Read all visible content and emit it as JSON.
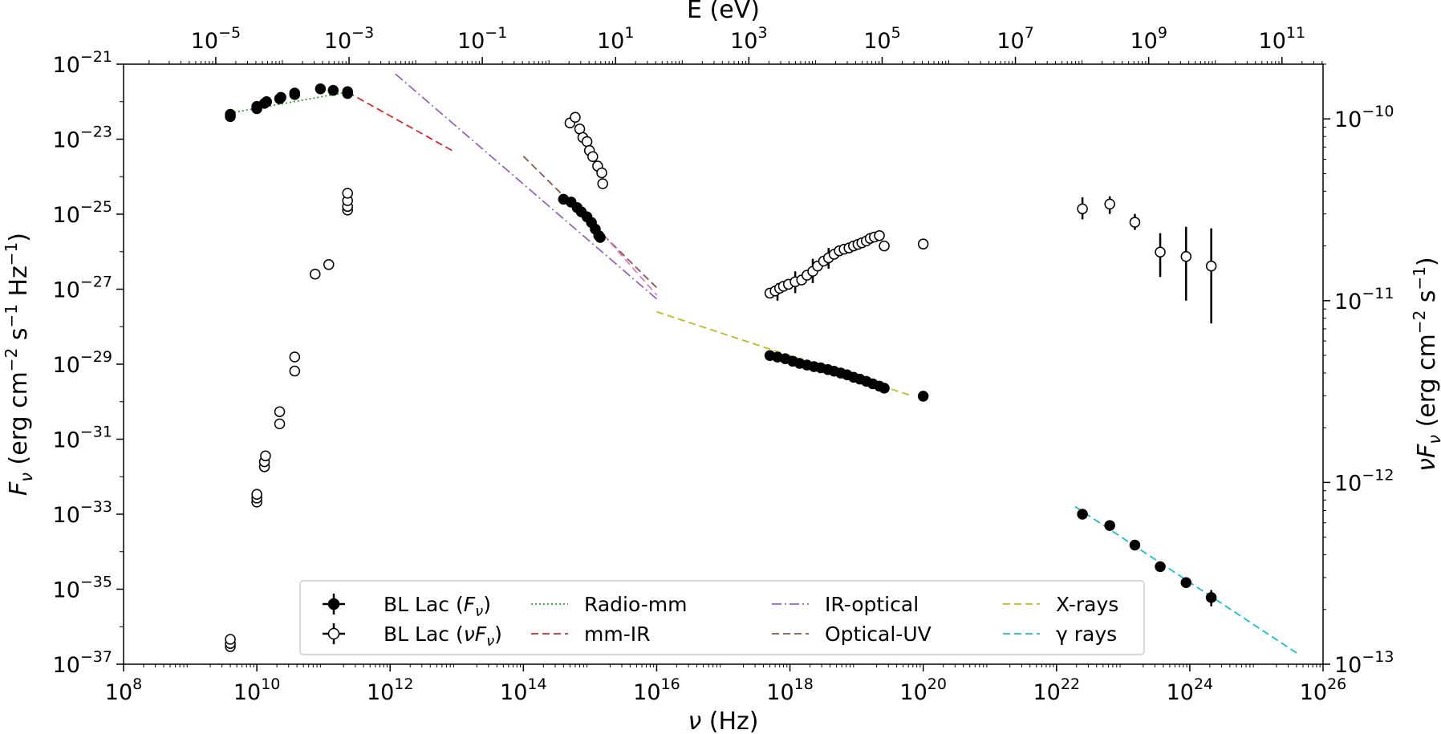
{
  "chart_data": {
    "type": "scatter",
    "title": "",
    "xlabel_parts": [
      "ν",
      " (Hz)"
    ],
    "top_xlabel": "E (eV)",
    "ylabel_parts": [
      "F",
      "ν",
      " (erg cm",
      "−2",
      " s",
      "−1",
      " Hz",
      "−1",
      ")"
    ],
    "right_ylabel_parts": [
      "νF",
      "ν",
      " (erg cm",
      "−2",
      " s",
      "−1",
      ")"
    ],
    "xscale": "log",
    "yscale": "log",
    "xlim": [
      100000000.0,
      1e+26
    ],
    "ylim": [
      1e-37,
      1e-21
    ],
    "right_ylim": [
      1e-13,
      2e-10
    ],
    "x_ticks": [
      {
        "base": "10",
        "exp": "8",
        "value": 100000000.0
      },
      {
        "base": "10",
        "exp": "10",
        "value": 10000000000.0
      },
      {
        "base": "10",
        "exp": "12",
        "value": 1000000000000.0
      },
      {
        "base": "10",
        "exp": "14",
        "value": 100000000000000.0
      },
      {
        "base": "10",
        "exp": "16",
        "value": 1e+16
      },
      {
        "base": "10",
        "exp": "18",
        "value": 1e+18
      },
      {
        "base": "10",
        "exp": "20",
        "value": 1e+20
      },
      {
        "base": "10",
        "exp": "22",
        "value": 1e+22
      },
      {
        "base": "10",
        "exp": "24",
        "value": 1e+24
      },
      {
        "base": "10",
        "exp": "26",
        "value": 1e+26
      }
    ],
    "y_ticks": [
      {
        "base": "10",
        "exp": "−21",
        "value": 1e-21
      },
      {
        "base": "10",
        "exp": "−23",
        "value": 1e-23
      },
      {
        "base": "10",
        "exp": "−25",
        "value": 1e-25
      },
      {
        "base": "10",
        "exp": "−27",
        "value": 1e-27
      },
      {
        "base": "10",
        "exp": "−29",
        "value": 1e-29
      },
      {
        "base": "10",
        "exp": "−31",
        "value": 1e-31
      },
      {
        "base": "10",
        "exp": "−33",
        "value": 1e-33
      },
      {
        "base": "10",
        "exp": "−35",
        "value": 1e-35
      },
      {
        "base": "10",
        "exp": "−37",
        "value": 1e-37
      }
    ],
    "top_ticks": [
      {
        "base": "10",
        "exp": "−5",
        "value": 1e-05
      },
      {
        "base": "10",
        "exp": "−3",
        "value": 0.001
      },
      {
        "base": "10",
        "exp": "−1",
        "value": 0.1
      },
      {
        "base": "10",
        "exp": "1",
        "value": 10.0
      },
      {
        "base": "10",
        "exp": "3",
        "value": 1000.0
      },
      {
        "base": "10",
        "exp": "5",
        "value": 100000.0
      },
      {
        "base": "10",
        "exp": "7",
        "value": 10000000.0
      },
      {
        "base": "10",
        "exp": "9",
        "value": 1000000000.0
      },
      {
        "base": "10",
        "exp": "11",
        "value": 100000000000.0
      }
    ],
    "right_ticks": [
      {
        "base": "10",
        "exp": "−10",
        "value": 1e-10
      },
      {
        "base": "10",
        "exp": "−11",
        "value": 1e-11
      },
      {
        "base": "10",
        "exp": "−12",
        "value": 1e-12
      },
      {
        "base": "10",
        "exp": "−13",
        "value": 1e-13
      }
    ],
    "series": [
      {
        "legend_label_parts": [
          "BL Lac (",
          "F",
          "ν",
          ")"
        ],
        "marker": "filled-circle",
        "color": "#000000",
        "axis": "left",
        "points": [
          [
            4000000000.0,
            4e-23
          ],
          [
            4000000000.0,
            4.6e-23
          ],
          [
            10000000000.0,
            6.5e-23
          ],
          [
            10000000000.0,
            7.5e-23
          ],
          [
            13000000000.0,
            9e-23
          ],
          [
            14000000000.0,
            1e-22
          ],
          [
            22000000000.0,
            1.2e-22
          ],
          [
            23000000000.0,
            1.3e-22
          ],
          [
            37000000000.0,
            1.55e-22
          ],
          [
            37000000000.0,
            1.7e-22
          ],
          [
            90000000000.0,
            2.2e-22
          ],
          [
            140000000000.0,
            2e-22
          ],
          [
            230000000000.0,
            1.85e-22
          ],
          [
            230000000000.0,
            1.65e-22
          ],
          [
            400000000000000.0,
            2.5e-25
          ],
          [
            520000000000000.0,
            2.1e-25
          ],
          [
            640000000000000.0,
            1.5e-25
          ],
          [
            740000000000000.0,
            1.15e-25
          ],
          [
            900000000000000.0,
            8.5e-26
          ],
          [
            1050000000000000.0,
            6e-26
          ],
          [
            1200000000000000.0,
            4e-26
          ],
          [
            1350000000000000.0,
            2.7e-26
          ],
          [
            1420000000000000.0,
            2.4e-26
          ],
          [
            5e+17,
            1.7e-29
          ],
          [
            6.5e+17,
            1.55e-29
          ],
          [
            8.5e+17,
            1.4e-29
          ],
          [
            1.1e+18,
            1.2e-29
          ],
          [
            1.4e+18,
            1.05e-29
          ],
          [
            1.8e+18,
            9.5e-30
          ],
          [
            2.3e+18,
            8.6e-30
          ],
          [
            2.9e+18,
            8e-30
          ],
          [
            3.7e+18,
            7.2e-30
          ],
          [
            4.6e+18,
            6.5e-30
          ],
          [
            5.8e+18,
            5.8e-30
          ],
          [
            7.2e+18,
            5.2e-30
          ],
          [
            9e+18,
            4.5e-30
          ],
          [
            1.12e+19,
            4e-30
          ],
          [
            1.4e+19,
            3.5e-30
          ],
          [
            1.75e+19,
            3e-30
          ],
          [
            2.2e+19,
            2.6e-30
          ],
          [
            2.6e+19,
            2.3e-30
          ],
          [
            1e+20,
            1.4e-30
          ],
          [
            2.45e+22,
            1e-33
          ],
          [
            6.3e+22,
            5e-34
          ],
          [
            1.5e+23,
            1.5e-34
          ],
          [
            3.6e+23,
            4e-35
          ],
          [
            8.8e+23,
            1.5e-35
          ],
          [
            2.1e+24,
            6e-36
          ]
        ],
        "errors": [
          [
            8.8e+23,
            1.1e-35,
            2e-35
          ],
          [
            2.1e+24,
            3.5e-36,
            9.5e-36
          ]
        ]
      },
      {
        "legend_label_parts": [
          "BL Lac (",
          "νF",
          "ν",
          ")"
        ],
        "marker": "open-circle",
        "color": "#000000",
        "axis": "right",
        "points": [
          [
            4000000000.0,
            1.25e-13
          ],
          [
            4000000000.0,
            1.3e-13
          ],
          [
            4000000000.0,
            1.37e-13
          ],
          [
            10000000000.0,
            7.8e-13
          ],
          [
            10000000000.0,
            8.2e-13
          ],
          [
            10000000000.0,
            8.6e-13
          ],
          [
            13000000000.0,
            1.22e-12
          ],
          [
            13000000000.0,
            1.3e-12
          ],
          [
            13500000000.0,
            1.4e-12
          ],
          [
            22000000000.0,
            2.1e-12
          ],
          [
            22000000000.0,
            2.45e-12
          ],
          [
            37000000000.0,
            4.1e-12
          ],
          [
            37000000000.0,
            4.9e-12
          ],
          [
            75000000000.0,
            1.4e-11
          ],
          [
            120000000000.0,
            1.58e-11
          ],
          [
            230000000000.0,
            3.15e-11
          ],
          [
            230000000000.0,
            3.3e-11
          ],
          [
            230000000000.0,
            3.55e-11
          ],
          [
            230000000000.0,
            3.9e-11
          ],
          [
            500000000000000.0,
            9.5e-11
          ],
          [
            600000000000000.0,
            1.02e-10
          ],
          [
            700000000000000.0,
            8.8e-11
          ],
          [
            780000000000000.0,
            7.9e-11
          ],
          [
            900000000000000.0,
            7.5e-11
          ],
          [
            980000000000000.0,
            6.7e-11
          ],
          [
            1100000000000000.0,
            6.2e-11
          ],
          [
            1300000000000000.0,
            5.5e-11
          ],
          [
            1500000000000000.0,
            5.05e-11
          ],
          [
            1550000000000000.0,
            4.4e-11
          ],
          [
            5e+17,
            1.1e-11
          ],
          [
            6e+17,
            1.13e-11
          ],
          [
            7e+17,
            1.17e-11
          ],
          [
            8e+17,
            1.2e-11
          ],
          [
            9.5e+17,
            1.23e-11
          ],
          [
            1.2e+18,
            1.27e-11
          ],
          [
            1.5e+18,
            1.3e-11
          ],
          [
            1.8e+18,
            1.38e-11
          ],
          [
            2.2e+18,
            1.45e-11
          ],
          [
            2.6e+18,
            1.55e-11
          ],
          [
            3.2e+18,
            1.65e-11
          ],
          [
            3.8e+18,
            1.72e-11
          ],
          [
            4.6e+18,
            1.8e-11
          ],
          [
            5.5e+18,
            1.88e-11
          ],
          [
            6.5e+18,
            1.92e-11
          ],
          [
            7.7e+18,
            1.95e-11
          ],
          [
            9e+18,
            2e-11
          ],
          [
            1.05e+19,
            2.04e-11
          ],
          [
            1.2e+19,
            2.08e-11
          ],
          [
            1.4e+19,
            2.13e-11
          ],
          [
            1.6e+19,
            2.2e-11
          ],
          [
            1.85e+19,
            2.24e-11
          ],
          [
            2.2e+19,
            2.28e-11
          ],
          [
            2.6e+19,
            2e-11
          ],
          [
            1e+20,
            2.05e-11
          ],
          [
            2.45e+22,
            3.2e-11
          ],
          [
            6.3e+22,
            3.4e-11
          ],
          [
            1.5e+23,
            2.7e-11
          ],
          [
            3.6e+23,
            1.85e-11
          ],
          [
            8.8e+23,
            1.75e-11
          ],
          [
            2.1e+24,
            1.55e-11
          ]
        ],
        "errors": [
          [
            2.45e+22,
            2.8e-11,
            3.7e-11
          ],
          [
            6.3e+22,
            3e-11,
            3.75e-11
          ],
          [
            1.5e+23,
            2.45e-11,
            3e-11
          ],
          [
            3.6e+23,
            1.35e-11,
            2.35e-11
          ],
          [
            8.8e+23,
            1e-11,
            2.55e-11
          ],
          [
            2.1e+24,
            7.5e-12,
            2.5e-11
          ],
          [
            230000000000.0,
            3.05e-11,
            4.1e-11
          ],
          [
            6.5e+17,
            1e-11,
            1.25e-11
          ],
          [
            1.2e+18,
            1.1e-11,
            1.45e-11
          ],
          [
            2.2e+18,
            1.25e-11,
            1.7e-11
          ],
          [
            3.8e+18,
            1.5e-11,
            1.95e-11
          ]
        ]
      }
    ],
    "fits": [
      {
        "name": "Radio-mm",
        "color": "#2ca02c",
        "dash": "2,3",
        "points": [
          [
            4000000000.0,
            5e-23
          ],
          [
            230000000000.0,
            1.8e-22
          ]
        ]
      },
      {
        "name": "mm-IR",
        "color": "#d62728",
        "dash": "9,5",
        "points": [
          [
            230000000000.0,
            1.8e-22
          ],
          [
            8500000000000.0,
            5e-24
          ]
        ]
      },
      {
        "name": "IR-optical",
        "color": "#9467bd",
        "dash": "12,4,2,4",
        "points": [
          [
            1200000000000.0,
            5.5e-22
          ],
          [
            1e+16,
            5.5e-28
          ]
        ]
      },
      {
        "name": "Optical-UV",
        "color": "#8c564b",
        "dash": "9,5",
        "points": [
          [
            100000000000000.0,
            3.5e-24
          ],
          [
            1e+16,
            1.1e-27
          ]
        ]
      },
      {
        "name": "X-rays",
        "color": "#bcbd22",
        "dash": "9,5",
        "points": [
          [
            1e+16,
            2.5e-28
          ],
          [
            7e+19,
            1.4e-30
          ]
        ]
      },
      {
        "name": "γ rays",
        "color": "#17becf",
        "dash": "9,5",
        "points": [
          [
            1.9e+22,
            1.6e-33
          ],
          [
            4e+25,
            2e-37
          ]
        ]
      }
    ],
    "fit_line_pink": {
      "color": "#e377c2",
      "dash": "9,5",
      "points": [
        [
          1200000000000000.0,
          5e-26
        ],
        [
          1e+16,
          7e-28
        ]
      ]
    },
    "legend": {
      "placement": "lower-center",
      "entries": [
        {
          "kind": "series",
          "ref": 0
        },
        {
          "kind": "series",
          "ref": 1
        },
        {
          "kind": "fit",
          "ref": 0
        },
        {
          "kind": "fit",
          "ref": 1
        },
        {
          "kind": "fit",
          "ref": 2
        },
        {
          "kind": "fit",
          "ref": 3
        },
        {
          "kind": "fit",
          "ref": 4
        },
        {
          "kind": "fit",
          "ref": 5
        }
      ]
    },
    "grid": false
  }
}
